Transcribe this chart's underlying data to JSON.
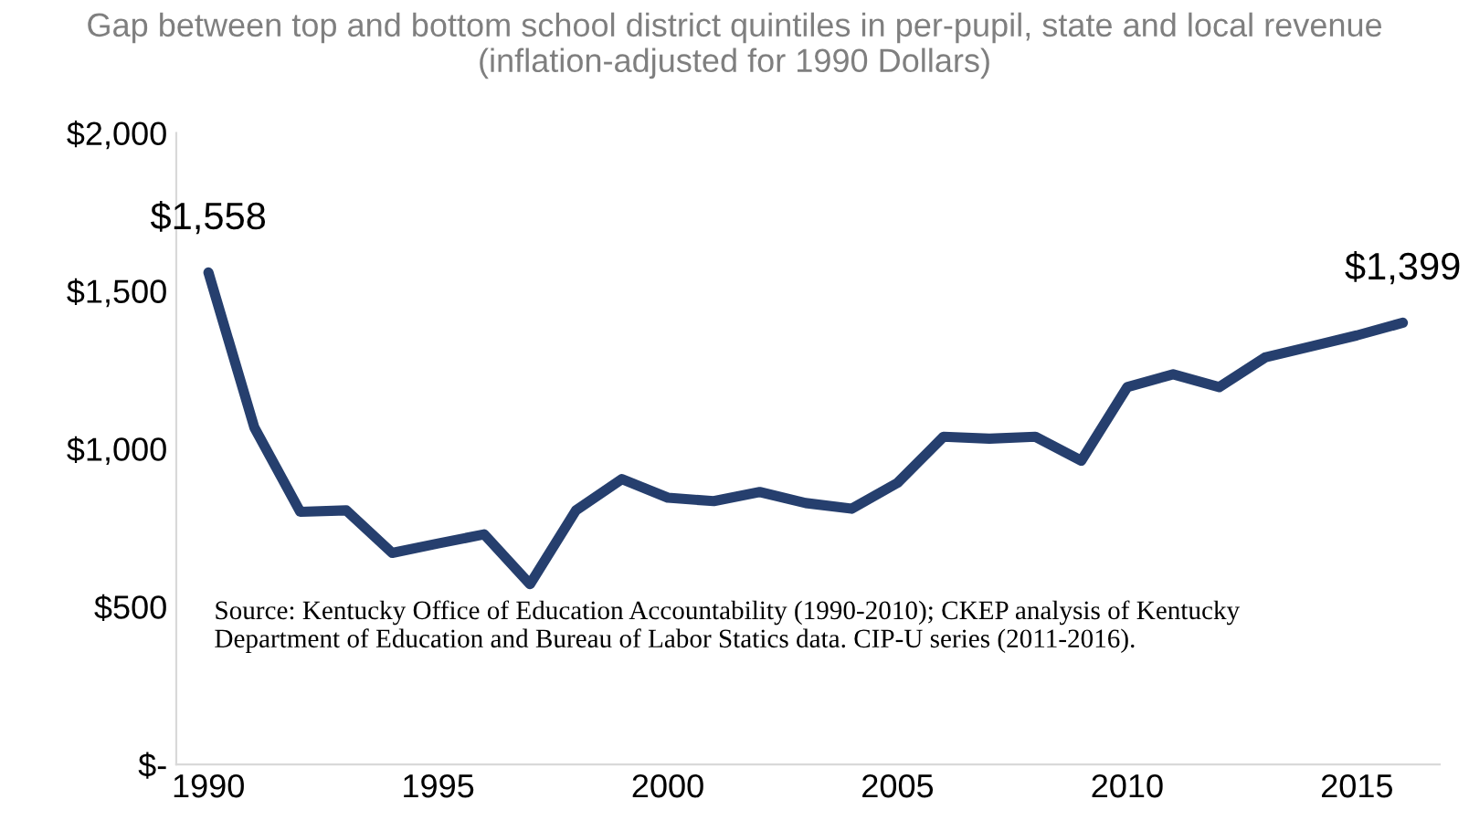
{
  "chart_data": {
    "type": "line",
    "title": "Gap between top and bottom school district quintiles in per-pupil, state and local revenue\n(inflation-adjusted for 1990 Dollars)",
    "x": [
      1990,
      1991,
      1992,
      1993,
      1994,
      1995,
      1996,
      1997,
      1998,
      1999,
      2000,
      2001,
      2002,
      2003,
      2004,
      2005,
      2006,
      2007,
      2008,
      2009,
      2010,
      2011,
      2012,
      2013,
      2014,
      2015,
      2016
    ],
    "series": [
      {
        "color": "#263f6e",
        "values": [
          1558,
          1067,
          800,
          805,
          670,
          700,
          729,
          571,
          805,
          904,
          845,
          834,
          863,
          828,
          810,
          892,
          1038,
          1032,
          1038,
          962,
          1195,
          1236,
          1195,
          1289,
          1324,
          1359,
          1399
        ]
      }
    ],
    "xlim": [
      1989.3,
      2016.8
    ],
    "xticks": [
      1990,
      1995,
      2000,
      2005,
      2010,
      2015
    ],
    "ylim": [
      0,
      2000
    ],
    "yticks": [
      {
        "value": 0,
        "label": "$-"
      },
      {
        "value": 500,
        "label": "$500"
      },
      {
        "value": 1000,
        "label": "$1,000"
      },
      {
        "value": 1500,
        "label": "$1,500"
      },
      {
        "value": 2000,
        "label": "$2,000"
      }
    ],
    "annotations": [
      {
        "text": "$1,558",
        "x": 1990,
        "y": 1558
      },
      {
        "text": "$1,399",
        "x": 2016,
        "y": 1399
      },
      "Source: Kentucky Office of Education Accountability (1990-2010); CKEP analysis of Kentucky\nDepartment of Education and Bureau of Labor Statics data. CIP-U series (2011-2016)."
    ],
    "grid": false,
    "legend": false,
    "marker": "none",
    "line_style": "solid"
  }
}
